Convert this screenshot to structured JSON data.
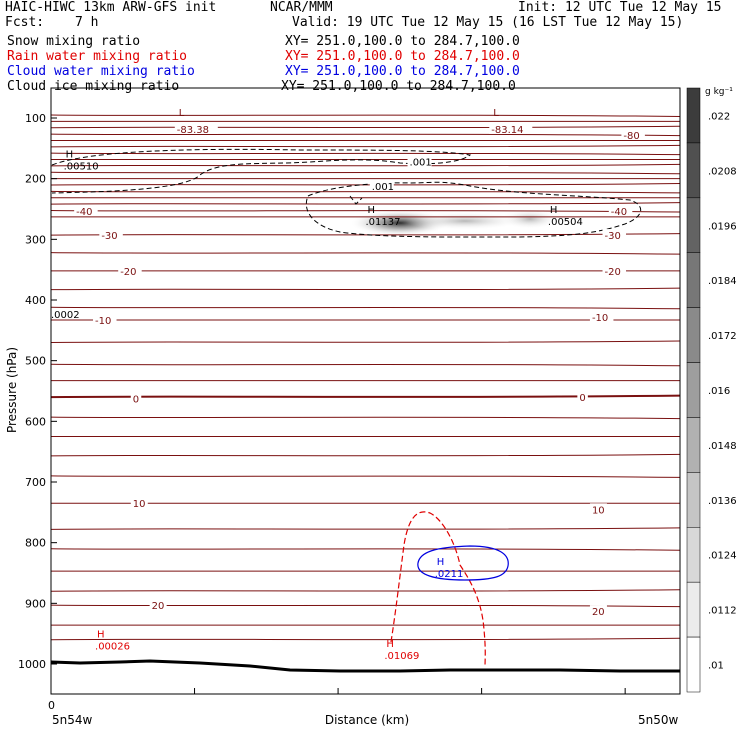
{
  "header": {
    "title": "HAIC-HIWC 13km ARW-GFS init",
    "org": "NCAR/MMM",
    "init": "Init: 12 UTC Tue 12 May 15",
    "fcst_label": "Fcst:",
    "fcst_value": "7 h",
    "valid": "Valid: 19 UTC Tue 12 May 15 (16 LST Tue 12 May 15)"
  },
  "legend": [
    {
      "label": "Snow mixing ratio",
      "xy": "XY= 251.0,100.0 to 284.7,100.0",
      "color": "#000000"
    },
    {
      "label": "Rain water mixing ratio",
      "xy": "XY= 251.0,100.0 to 284.7,100.0",
      "color": "#e00000"
    },
    {
      "label": "Cloud water mixing ratio",
      "xy": "XY= 251.0,100.0 to 284.7,100.0",
      "color": "#0000e0"
    },
    {
      "label": "Cloud ice mixing ratio",
      "xy": "XY= 251.0,100.0 to 284.7,100.0",
      "color": "#000000"
    }
  ],
  "colors": {
    "temperature": "#7a1010",
    "rain": "#e00000",
    "cloud_water": "#0000e0",
    "snow": "#000000",
    "terrain": "#000000"
  },
  "chart_data": {
    "type": "contour",
    "ylabel": "Pressure (hPa)",
    "xlabel": "Distance (km)",
    "x_tick_label": "0",
    "x_left_label": "5n54w",
    "x_right_label": "5n50w",
    "y_ticks": [
      100,
      200,
      300,
      400,
      500,
      600,
      700,
      800,
      900,
      1000
    ],
    "ylim": [
      1050,
      50
    ],
    "colorbar": {
      "unit": "g kg⁻¹",
      "labels": [
        ".022",
        ".0208",
        ".0196",
        ".0184",
        ".0172",
        ".016",
        ".0148",
        ".0136",
        ".0124",
        ".0112",
        ".01"
      ]
    },
    "temperature_labels": [
      {
        "text": "-83.38",
        "x": 0.2,
        "p": 118
      },
      {
        "text": "-83.14",
        "x": 0.7,
        "p": 118
      },
      {
        "text": "-80",
        "x": 0.91,
        "p": 128
      },
      {
        "text": "-40",
        "x": 0.04,
        "p": 253
      },
      {
        "text": "-40",
        "x": 0.89,
        "p": 253
      },
      {
        "text": "-30",
        "x": 0.08,
        "p": 293
      },
      {
        "text": "-30",
        "x": 0.88,
        "p": 293
      },
      {
        "text": "-20",
        "x": 0.11,
        "p": 352
      },
      {
        "text": "-20",
        "x": 0.88,
        "p": 352
      },
      {
        "text": "-10",
        "x": 0.07,
        "p": 433
      },
      {
        "text": "-10",
        "x": 0.86,
        "p": 428
      },
      {
        "text": "0",
        "x": 0.13,
        "p": 562
      },
      {
        "text": "0",
        "x": 0.84,
        "p": 560
      },
      {
        "text": "10",
        "x": 0.13,
        "p": 735
      },
      {
        "text": "10",
        "x": 0.86,
        "p": 745
      },
      {
        "text": "20",
        "x": 0.16,
        "p": 903
      },
      {
        "text": "20",
        "x": 0.86,
        "p": 913
      }
    ],
    "extrema": [
      {
        "mark": "L",
        "value": "",
        "x": 0.2,
        "p": 100,
        "field": "temperature"
      },
      {
        "mark": "L",
        "value": "",
        "x": 0.7,
        "p": 100,
        "field": "temperature"
      },
      {
        "mark": "H",
        "value": ".00510",
        "x": 0.02,
        "p": 168,
        "field": "snow"
      },
      {
        "mark": "H",
        "value": ".01137",
        "x": 0.5,
        "p": 260,
        "field": "snow"
      },
      {
        "mark": "H",
        "value": ".00504",
        "x": 0.79,
        "p": 260,
        "field": "snow"
      },
      {
        "mark": "",
        "value": ".0002",
        "x": 0.0,
        "p": 413,
        "field": "snow"
      },
      {
        "mark": "H",
        "value": ".0211",
        "x": 0.61,
        "p": 840,
        "field": "cloud_water"
      },
      {
        "mark": "H",
        "value": ".00026",
        "x": 0.07,
        "p": 960,
        "field": "rain"
      },
      {
        "mark": "H",
        "value": ".01069",
        "x": 0.53,
        "p": 975,
        "field": "rain"
      }
    ],
    "contour_labels": [
      {
        "text": ".001",
        "x": 0.57,
        "p": 172,
        "field": "snow"
      },
      {
        "text": ".001",
        "x": 0.51,
        "p": 212,
        "field": "snow"
      }
    ]
  }
}
